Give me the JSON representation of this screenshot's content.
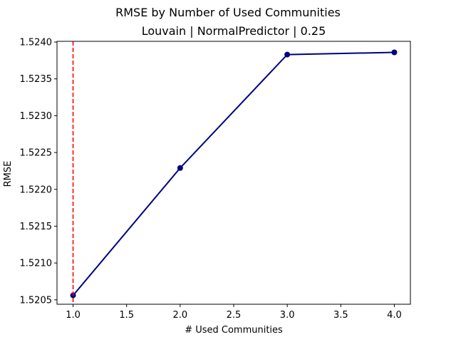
{
  "chart_data": {
    "type": "line",
    "title": "RMSE by Number of Used Communities",
    "subtitle": "Louvain | NormalPredictor | 0.25",
    "xlabel": "# Used Communities",
    "ylabel": "RMSE",
    "xlim": [
      0.85,
      4.15
    ],
    "ylim": [
      1.52044,
      1.52401
    ],
    "x_ticks": [
      "1.0",
      "1.5",
      "2.0",
      "2.5",
      "3.0",
      "3.5",
      "4.0"
    ],
    "y_ticks": [
      "1.5205",
      "1.5210",
      "1.5215",
      "1.5220",
      "1.5225",
      "1.5230",
      "1.5235",
      "1.5240"
    ],
    "grid": false,
    "series": [
      {
        "x": [
          1,
          2,
          3,
          4
        ],
        "y": [
          1.52056,
          1.52229,
          1.52383,
          1.52386
        ],
        "color": "#000080"
      }
    ],
    "vline": {
      "x": 1,
      "color": "#ff0000",
      "style": "dashed"
    }
  }
}
